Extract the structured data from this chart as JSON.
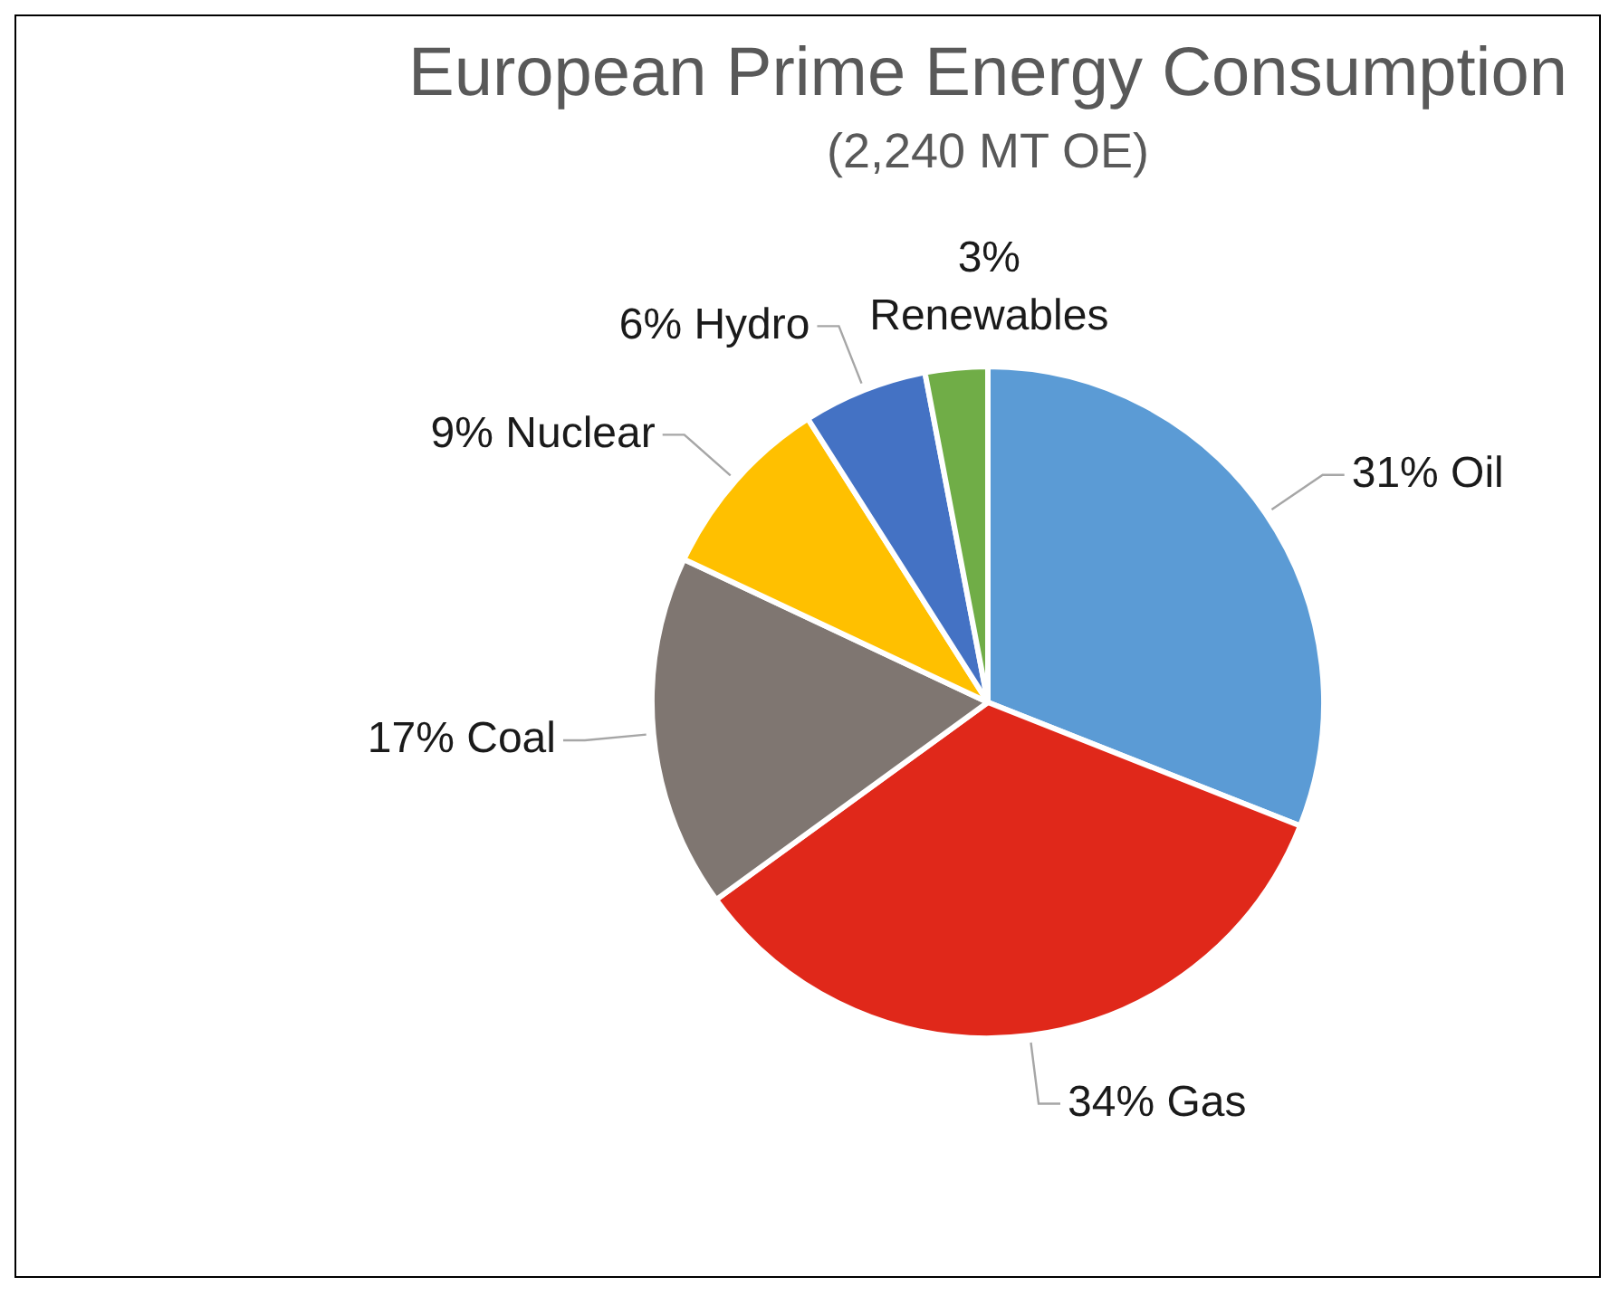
{
  "chart_data": {
    "type": "pie",
    "title": "European Prime Energy Consumption",
    "subtitle": "(2,240 MT OE)",
    "categories": [
      "Oil",
      "Gas",
      "Coal",
      "Nuclear",
      "Hydro",
      "Renewables"
    ],
    "values": [
      31,
      34,
      17,
      9,
      6,
      3
    ],
    "colors": [
      "#5b9bd5",
      "#e0281a",
      "#7f7671",
      "#ffc000",
      "#4472c4",
      "#70ad47"
    ],
    "value_labels": [
      "31%",
      "34%",
      "17%",
      "9%",
      "6%",
      "3%"
    ],
    "legend": false
  }
}
